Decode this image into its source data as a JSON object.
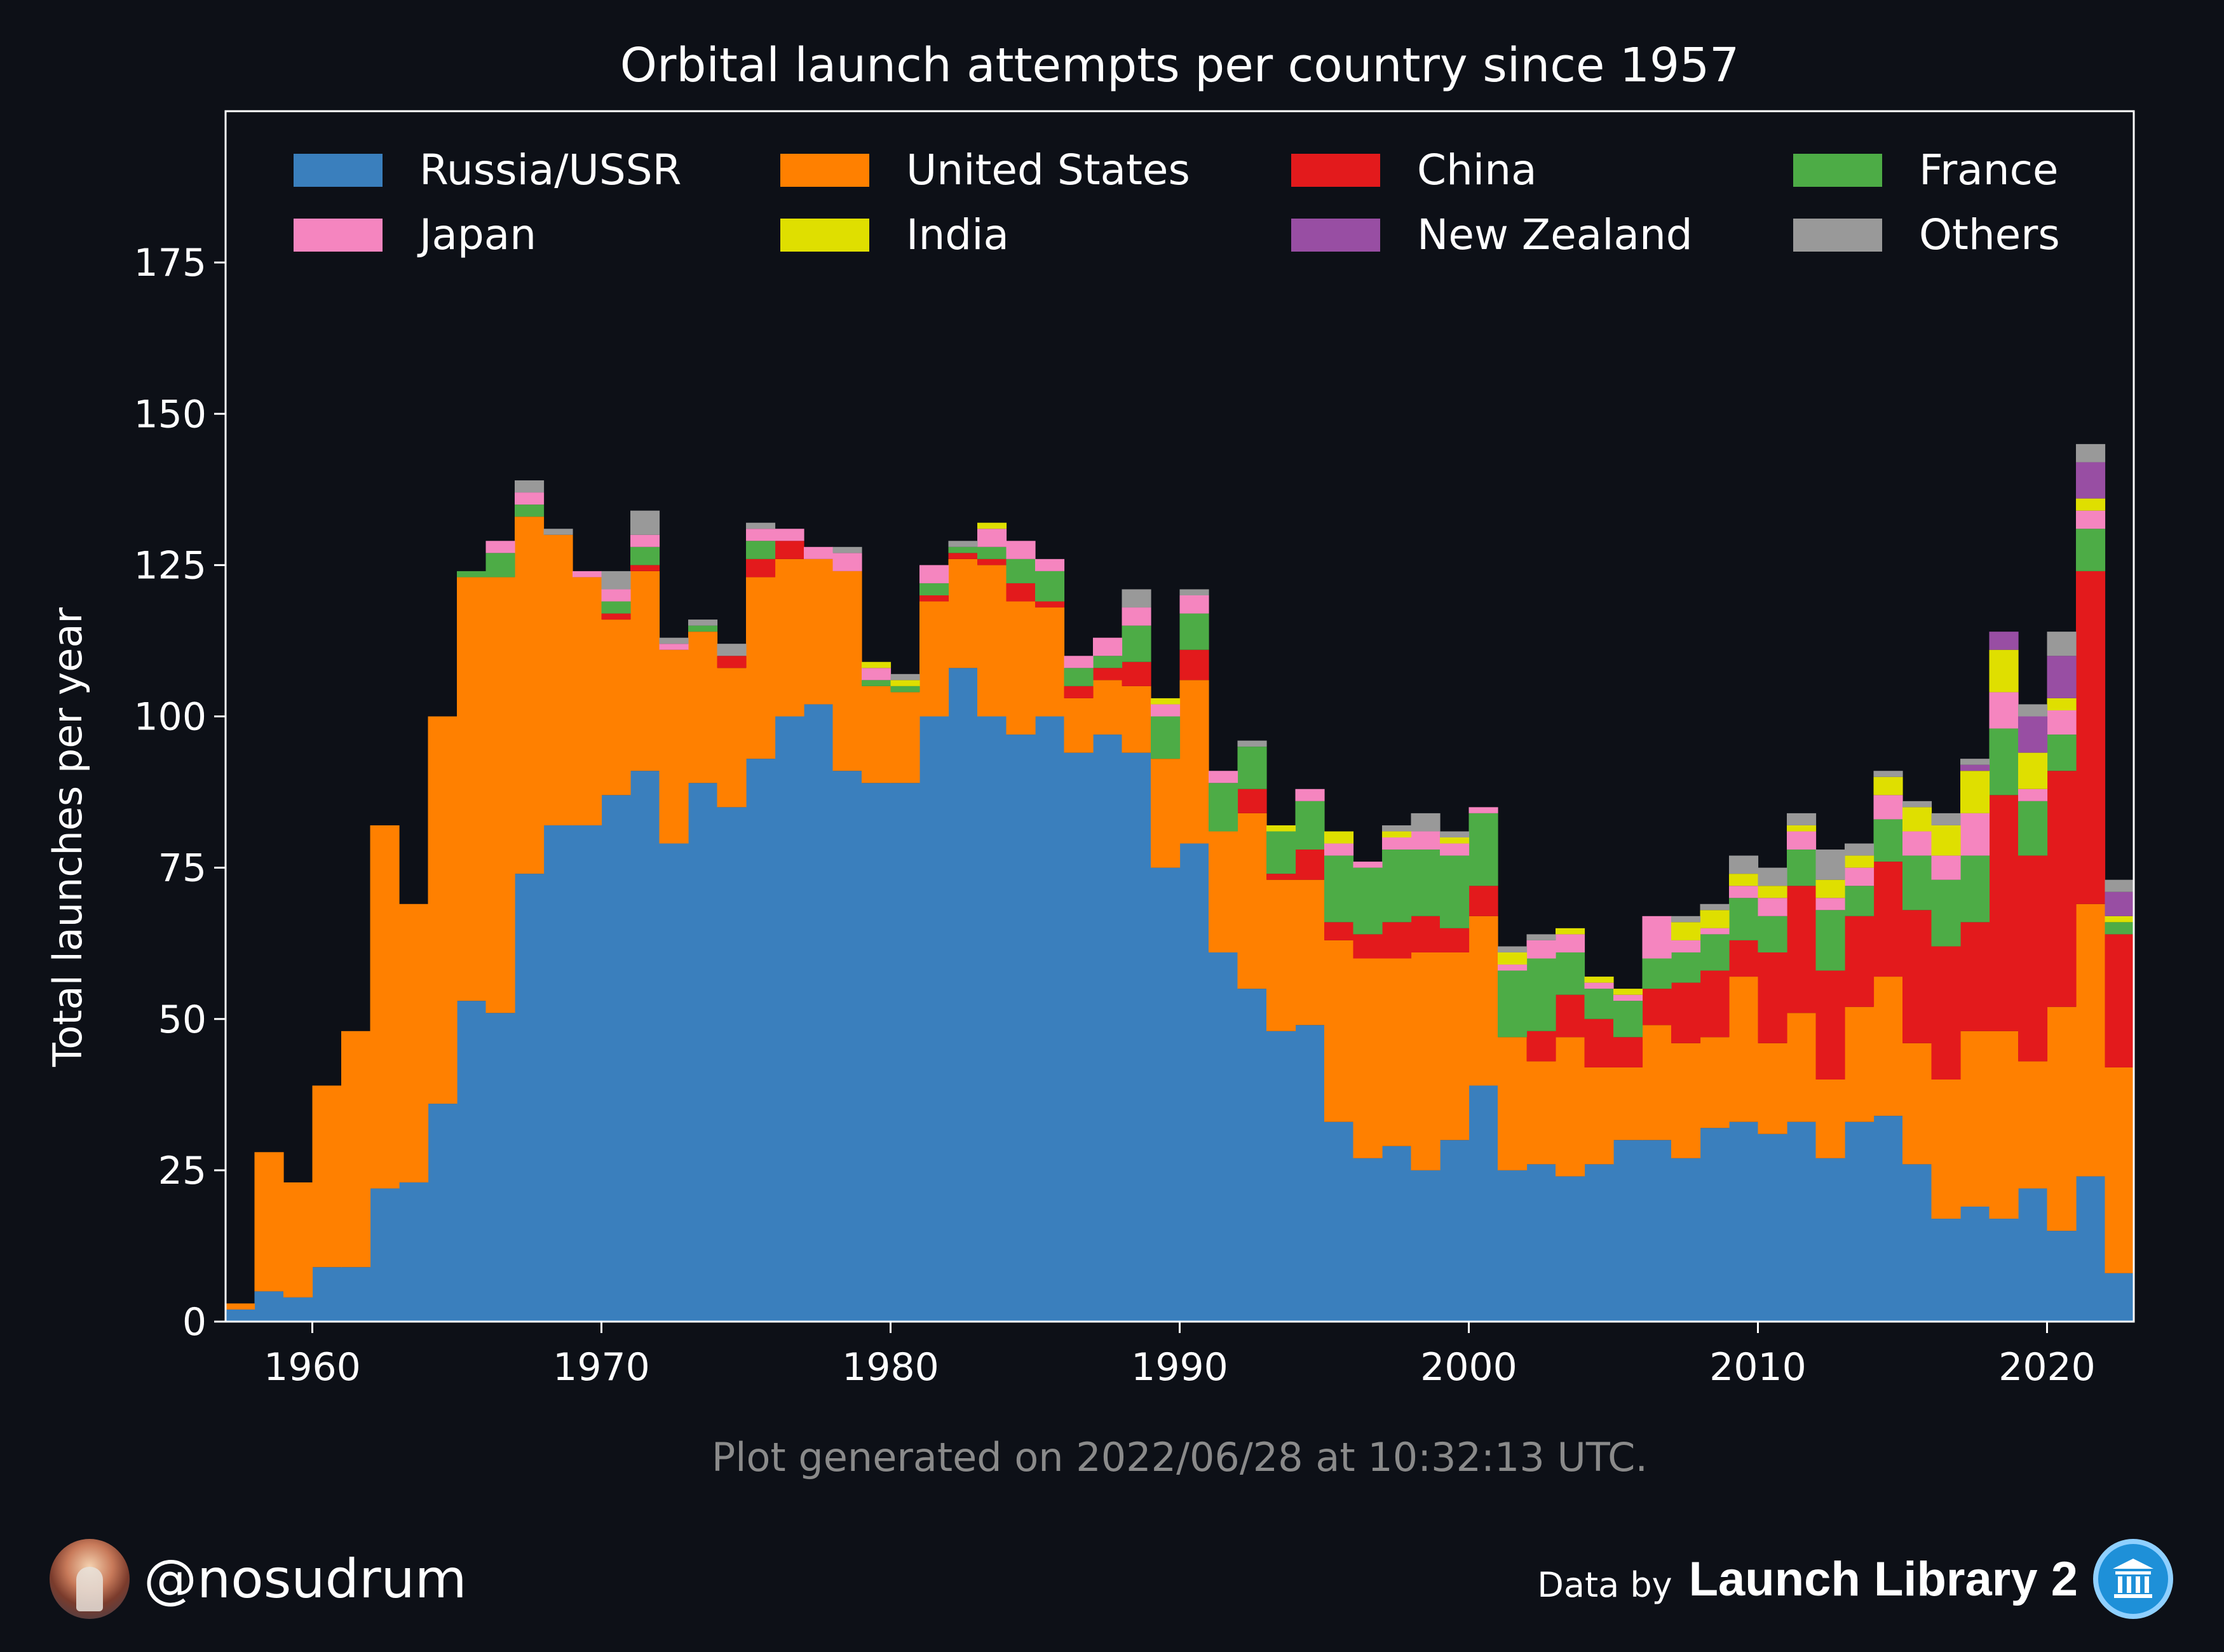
{
  "chart_data": {
    "type": "bar",
    "stacked": true,
    "title": "Orbital launch attempts per country since 1957",
    "ylabel": "Total launches per year",
    "xlabel": "",
    "xlim": [
      1957,
      2023
    ],
    "ylim": [
      0,
      200
    ],
    "xticks": [
      "1960",
      "1970",
      "1980",
      "1990",
      "2000",
      "2010",
      "2020"
    ],
    "yticks": [
      "0",
      "25",
      "50",
      "75",
      "100",
      "125",
      "150",
      "175"
    ],
    "legend_position": "top, 4 columns",
    "footnote": "Plot generated on 2022/06/28 at 10:32:13 UTC.",
    "x": [
      1957,
      1958,
      1959,
      1960,
      1961,
      1962,
      1963,
      1964,
      1965,
      1966,
      1967,
      1968,
      1969,
      1970,
      1971,
      1972,
      1973,
      1974,
      1975,
      1976,
      1977,
      1978,
      1979,
      1980,
      1981,
      1982,
      1983,
      1984,
      1985,
      1986,
      1987,
      1988,
      1989,
      1990,
      1991,
      1992,
      1993,
      1994,
      1995,
      1996,
      1997,
      1998,
      1999,
      2000,
      2001,
      2002,
      2003,
      2004,
      2005,
      2006,
      2007,
      2008,
      2009,
      2010,
      2011,
      2012,
      2013,
      2014,
      2015,
      2016,
      2017,
      2018,
      2019,
      2020,
      2021,
      2022
    ],
    "series": [
      {
        "name": "Russia/USSR",
        "color": "#3a7fbd",
        "values": [
          2,
          5,
          4,
          9,
          9,
          22,
          23,
          36,
          53,
          51,
          74,
          82,
          82,
          87,
          91,
          79,
          89,
          85,
          93,
          100,
          102,
          91,
          89,
          89,
          100,
          108,
          100,
          97,
          100,
          94,
          97,
          94,
          75,
          79,
          61,
          55,
          48,
          49,
          33,
          27,
          29,
          25,
          30,
          39,
          25,
          26,
          24,
          26,
          30,
          30,
          27,
          32,
          33,
          31,
          33,
          27,
          33,
          34,
          26,
          17,
          19,
          17,
          22,
          15,
          24,
          8
        ]
      },
      {
        "name": "United States",
        "color": "#ff8000",
        "values": [
          1,
          23,
          19,
          30,
          39,
          60,
          46,
          64,
          70,
          72,
          59,
          48,
          41,
          29,
          33,
          32,
          25,
          23,
          30,
          26,
          24,
          33,
          16,
          15,
          19,
          18,
          25,
          22,
          18,
          9,
          9,
          11,
          18,
          27,
          20,
          29,
          25,
          24,
          30,
          33,
          31,
          36,
          31,
          28,
          22,
          17,
          23,
          16,
          12,
          19,
          19,
          15,
          24,
          15,
          18,
          13,
          19,
          23,
          20,
          23,
          29,
          31,
          21,
          37,
          45,
          34
        ]
      },
      {
        "name": "China",
        "color": "#e31a1c",
        "values": [
          0,
          0,
          0,
          0,
          0,
          0,
          0,
          0,
          0,
          0,
          0,
          0,
          0,
          1,
          1,
          0,
          0,
          2,
          3,
          3,
          0,
          0,
          0,
          0,
          1,
          1,
          1,
          3,
          1,
          2,
          2,
          4,
          0,
          5,
          0,
          4,
          1,
          5,
          3,
          4,
          6,
          6,
          4,
          5,
          0,
          5,
          7,
          8,
          5,
          6,
          10,
          11,
          6,
          15,
          21,
          18,
          15,
          19,
          22,
          22,
          18,
          39,
          34,
          39,
          55,
          22
        ]
      },
      {
        "name": "France",
        "color": "#4dac46",
        "values": [
          0,
          0,
          0,
          0,
          0,
          0,
          0,
          0,
          1,
          4,
          2,
          0,
          0,
          2,
          3,
          0,
          1,
          0,
          3,
          0,
          0,
          0,
          1,
          1,
          2,
          1,
          2,
          4,
          5,
          3,
          2,
          6,
          7,
          6,
          8,
          7,
          7,
          8,
          11,
          11,
          12,
          11,
          12,
          12,
          11,
          12,
          7,
          5,
          6,
          5,
          5,
          6,
          7,
          6,
          6,
          10,
          5,
          7,
          9,
          11,
          11,
          11,
          9,
          6,
          7,
          2
        ]
      },
      {
        "name": "Japan",
        "color": "#f585bf",
        "values": [
          0,
          0,
          0,
          0,
          0,
          0,
          0,
          0,
          0,
          2,
          2,
          0,
          1,
          2,
          2,
          1,
          0,
          0,
          2,
          2,
          2,
          3,
          2,
          0,
          3,
          0,
          3,
          3,
          2,
          2,
          3,
          3,
          2,
          3,
          2,
          0,
          0,
          2,
          2,
          1,
          2,
          3,
          2,
          1,
          1,
          3,
          3,
          1,
          1,
          7,
          2,
          1,
          2,
          3,
          3,
          2,
          3,
          4,
          4,
          4,
          7,
          6,
          2,
          4,
          3,
          0
        ]
      },
      {
        "name": "India",
        "color": "#dfdf00",
        "values": [
          0,
          0,
          0,
          0,
          0,
          0,
          0,
          0,
          0,
          0,
          0,
          0,
          0,
          0,
          0,
          0,
          0,
          0,
          0,
          0,
          0,
          0,
          1,
          1,
          0,
          0,
          1,
          0,
          0,
          0,
          0,
          0,
          1,
          0,
          0,
          0,
          1,
          0,
          2,
          0,
          1,
          0,
          1,
          0,
          2,
          0,
          1,
          1,
          1,
          0,
          3,
          3,
          2,
          2,
          1,
          3,
          2,
          3,
          4,
          5,
          7,
          7,
          6,
          2,
          2,
          1
        ]
      },
      {
        "name": "New Zealand",
        "color": "#984ea3",
        "values": [
          0,
          0,
          0,
          0,
          0,
          0,
          0,
          0,
          0,
          0,
          0,
          0,
          0,
          0,
          0,
          0,
          0,
          0,
          0,
          0,
          0,
          0,
          0,
          0,
          0,
          0,
          0,
          0,
          0,
          0,
          0,
          0,
          0,
          0,
          0,
          0,
          0,
          0,
          0,
          0,
          0,
          0,
          0,
          0,
          0,
          0,
          0,
          0,
          0,
          0,
          0,
          0,
          0,
          0,
          0,
          0,
          0,
          0,
          0,
          0,
          1,
          3,
          6,
          7,
          6,
          4
        ]
      },
      {
        "name": "Others",
        "color": "#999999",
        "values": [
          0,
          0,
          0,
          0,
          0,
          0,
          0,
          0,
          0,
          0,
          2,
          1,
          0,
          3,
          4,
          1,
          1,
          2,
          1,
          0,
          0,
          1,
          0,
          1,
          0,
          1,
          0,
          0,
          0,
          0,
          0,
          3,
          0,
          1,
          0,
          1,
          0,
          0,
          0,
          0,
          1,
          3,
          1,
          0,
          1,
          1,
          0,
          0,
          0,
          0,
          1,
          1,
          3,
          3,
          2,
          5,
          2,
          1,
          1,
          2,
          1,
          0,
          2,
          4,
          3,
          2
        ]
      }
    ]
  },
  "footer": {
    "handle": "@nosudrum",
    "data_by": "Data by",
    "brand": "Launch Library 2"
  },
  "icons": {
    "avatar": "user-avatar",
    "brand": "launch-library-icon"
  }
}
